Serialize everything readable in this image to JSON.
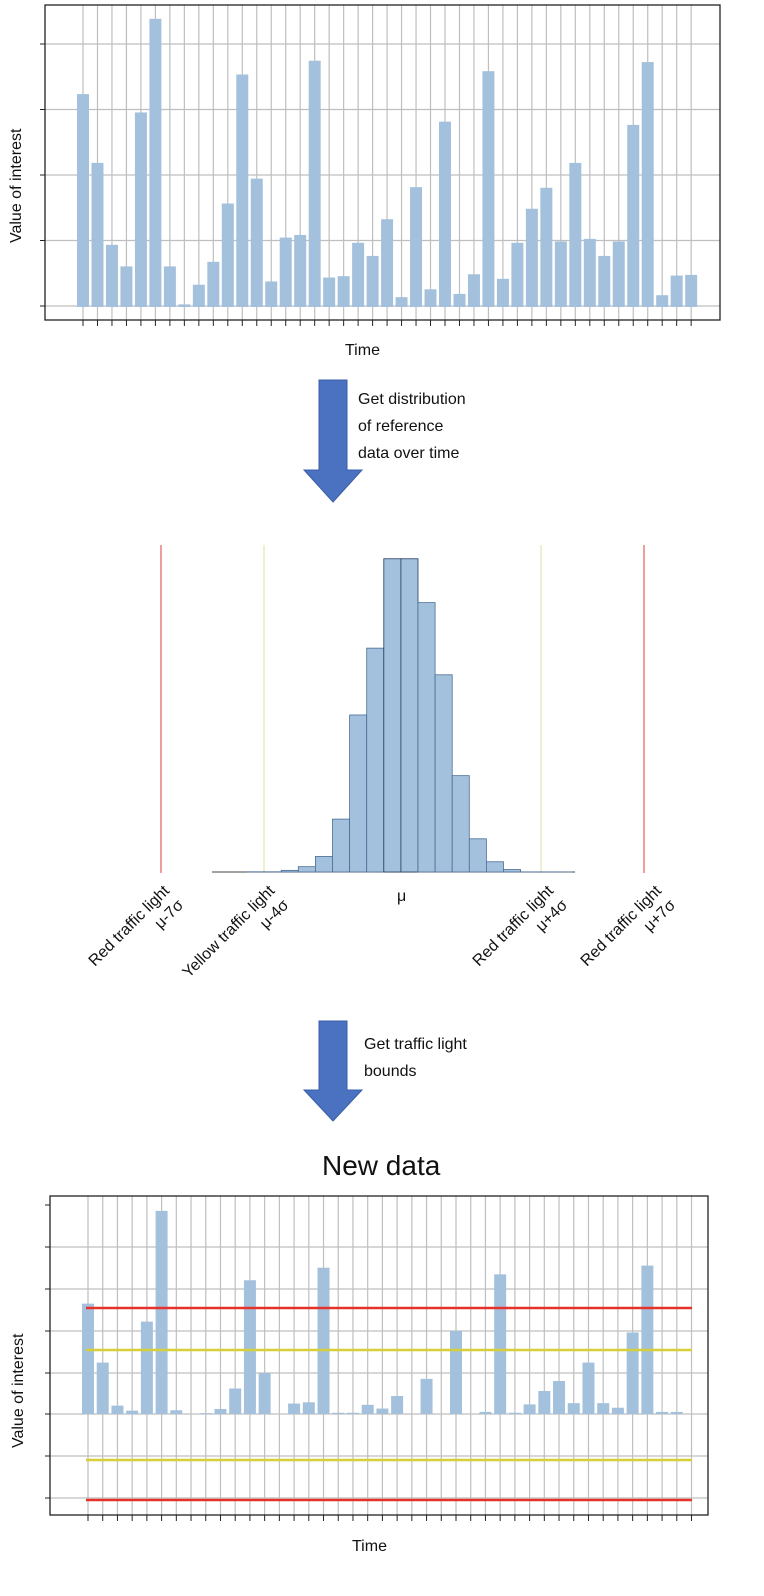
{
  "colors": {
    "bar_fill": "#a3c1dc",
    "bar_stroke_mid": "#1f3a5f",
    "grid": "#bfbfbf",
    "arrow": "#4a72c0",
    "red": "#e5322a",
    "yellow": "#d6cf3a",
    "red_thin": "#e86868",
    "yellow_thin": "#e8e6b8"
  },
  "top_chart": {
    "ylabel": "Value of interest",
    "xlabel": "Time"
  },
  "step1": {
    "text": "Get distribution\nof reference\ndata over time"
  },
  "step2": {
    "text": "Get traffic light\nbounds"
  },
  "labels": {
    "red_low": "Red traffic light\nμ-7σ",
    "yellow_low": "Yellow traffic light\nμ-4σ",
    "mu": "μ",
    "red_mid": "Red traffic light\nμ+4σ",
    "red_high": "Red traffic light\nμ+7σ"
  },
  "bottom_chart": {
    "title": "New data",
    "ylabel": "Value of interest",
    "xlabel": "Time"
  },
  "chart_data": [
    {
      "type": "bar",
      "ylabel": "Value of interest",
      "xlabel": "Time",
      "ylim": [
        0,
        4.4
      ],
      "values": [
        3.25,
        2.2,
        0.95,
        0.62,
        2.97,
        4.4,
        0.62,
        0.04,
        0.34,
        0.69,
        1.58,
        3.55,
        1.96,
        0.39,
        1.06,
        1.1,
        3.76,
        0.45,
        0.47,
        0.98,
        0.78,
        1.34,
        0.15,
        1.83,
        0.27,
        2.83,
        0.2,
        0.5,
        3.6,
        0.43,
        0.98,
        1.5,
        1.82,
        1.0,
        2.2,
        1.04,
        0.78,
        1.0,
        2.78,
        3.74,
        0.18,
        0.48,
        0.49
      ]
    },
    {
      "type": "bar",
      "values": [
        0.05,
        0.05,
        0.4,
        1.3,
        3.8,
        12.9,
        38.3,
        54.6,
        76.4,
        76.4,
        65.7,
        48.1,
        23.5,
        8.1,
        2.5,
        0.6,
        0.03,
        0.03,
        0.01
      ]
    },
    {
      "type": "bar",
      "title": "New data",
      "ylabel": "Value of interest",
      "xlabel": "Time",
      "ylim": [
        -2,
        5
      ],
      "reference_lines": {
        "red_upper": 1.6,
        "yellow_upper": 1.56,
        "yellow_lower": -1.1,
        "red_lower": -2.1
      },
      "values": [
        2.64,
        1.23,
        0.2,
        0.08,
        2.21,
        4.86,
        0.09,
        0.0,
        0.02,
        0.12,
        0.61,
        3.2,
        0.98,
        0.0,
        0.25,
        0.28,
        3.5,
        0.03,
        0.03,
        0.22,
        0.13,
        0.43,
        0.0,
        0.84,
        0.0,
        1.99,
        0.0,
        0.05,
        3.34,
        0.03,
        0.23,
        0.55,
        0.79,
        0.26,
        1.23,
        0.26,
        0.15,
        1.95,
        3.55,
        0.05,
        0.05
      ]
    }
  ]
}
